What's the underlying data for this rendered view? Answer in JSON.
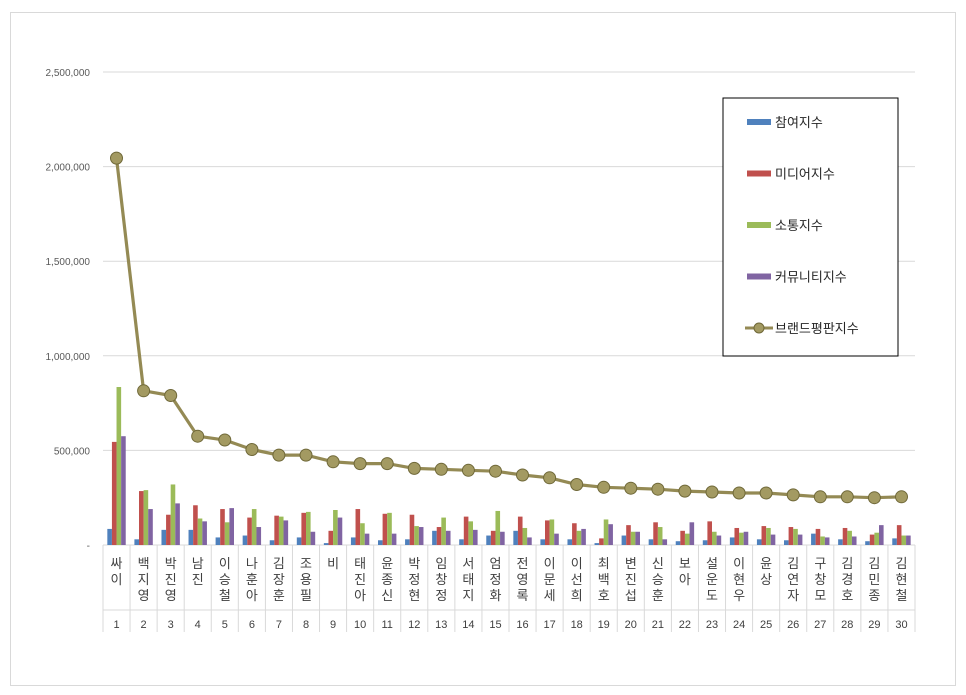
{
  "chart_data": {
    "type": "bar+line",
    "title": "",
    "xlabel": "",
    "ylabel": "",
    "ylim": [
      0,
      2500000
    ],
    "y_ticks": [
      "-",
      "500,000",
      "1,000,000",
      "1,500,000",
      "2,000,000",
      "2,500,000"
    ],
    "grid": "horizontal",
    "legend_position": "right",
    "names": [
      "싸이",
      "백지영",
      "박진영",
      "남진",
      "이승철",
      "나훈아",
      "김장훈",
      "조용필",
      "비",
      "태진아",
      "윤종신",
      "박정현",
      "임창정",
      "서태지",
      "엄정화",
      "전영록",
      "이문세",
      "이선희",
      "최백호",
      "변진섭",
      "신승훈",
      "보아",
      "설운도",
      "이현우",
      "윤상",
      "김연자",
      "구창모",
      "김경호",
      "김민종",
      "김현철"
    ],
    "ranks": [
      "1",
      "2",
      "3",
      "4",
      "5",
      "6",
      "7",
      "8",
      "9",
      "10",
      "11",
      "12",
      "13",
      "14",
      "15",
      "16",
      "17",
      "18",
      "19",
      "20",
      "21",
      "22",
      "23",
      "24",
      "25",
      "26",
      "27",
      "28",
      "29",
      "30"
    ],
    "series": [
      {
        "name": "참여지수",
        "kind": "bar",
        "color": "#4f81bd",
        "values": [
          85000,
          30000,
          80000,
          80000,
          40000,
          50000,
          25000,
          40000,
          10000,
          40000,
          25000,
          30000,
          75000,
          30000,
          50000,
          75000,
          30000,
          30000,
          10000,
          50000,
          30000,
          20000,
          25000,
          40000,
          30000,
          25000,
          60000,
          30000,
          20000,
          35000
        ]
      },
      {
        "name": "미디어지수",
        "kind": "bar",
        "color": "#c0504d",
        "values": [
          545000,
          285000,
          160000,
          210000,
          190000,
          145000,
          155000,
          170000,
          75000,
          190000,
          165000,
          160000,
          95000,
          150000,
          75000,
          150000,
          130000,
          115000,
          35000,
          105000,
          120000,
          75000,
          125000,
          90000,
          100000,
          95000,
          85000,
          90000,
          55000,
          105000
        ]
      },
      {
        "name": "소통지수",
        "kind": "bar",
        "color": "#9bbb59",
        "values": [
          835000,
          290000,
          320000,
          140000,
          120000,
          190000,
          150000,
          175000,
          185000,
          115000,
          170000,
          100000,
          145000,
          125000,
          180000,
          90000,
          135000,
          75000,
          135000,
          70000,
          95000,
          60000,
          70000,
          65000,
          90000,
          85000,
          45000,
          75000,
          65000,
          50000
        ]
      },
      {
        "name": "커뮤니티지수",
        "kind": "bar",
        "color": "#8064a2",
        "values": [
          575000,
          190000,
          220000,
          125000,
          195000,
          95000,
          130000,
          70000,
          145000,
          60000,
          60000,
          95000,
          75000,
          80000,
          70000,
          40000,
          60000,
          85000,
          110000,
          70000,
          30000,
          120000,
          50000,
          70000,
          55000,
          55000,
          40000,
          45000,
          105000,
          50000
        ]
      },
      {
        "name": "브랜드평판지수",
        "kind": "line",
        "color": "#948a54",
        "values": [
          2045000,
          815000,
          790000,
          575000,
          555000,
          505000,
          475000,
          475000,
          440000,
          430000,
          430000,
          405000,
          400000,
          395000,
          390000,
          370000,
          355000,
          320000,
          305000,
          300000,
          295000,
          285000,
          280000,
          275000,
          275000,
          265000,
          255000,
          255000,
          250000,
          255000
        ]
      }
    ]
  }
}
